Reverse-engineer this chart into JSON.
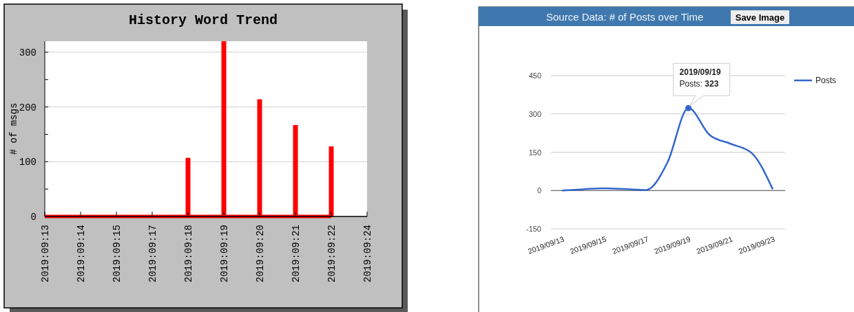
{
  "chart_data": [
    {
      "type": "bar",
      "title": "History Word Trend",
      "ylabel": "# of msgs",
      "categories": [
        "2019:09:13",
        "2019:09:14",
        "2019:09:15",
        "2019:09:17",
        "2019:09:18",
        "2019:09:19",
        "2019:09:20",
        "2019:09:21",
        "2019:09:22",
        "2019:09:24"
      ],
      "ylim": [
        0,
        320
      ],
      "yticks": [
        0,
        {
          "value": 50,
          "label": null
        },
        100,
        {
          "value": 150,
          "label": null
        },
        200,
        {
          "value": 250,
          "label": null
        },
        300
      ],
      "grid": "y",
      "series": [
        {
          "color": "#ff0000",
          "x": [
            "2019:09:18",
            "2019:09:19",
            "2019:09:20",
            "2019:09:21",
            "2019:09:22"
          ],
          "values": [
            107,
            320,
            214,
            167,
            128
          ]
        },
        {
          "type": "line",
          "color": "#ff0000",
          "x": [
            "2019:09:13",
            "2019:09:22"
          ],
          "values": [
            0,
            0
          ]
        }
      ]
    },
    {
      "type": "line",
      "title": "Source Data: # of Posts over Time",
      "categories": [
        "2019/09/13",
        null,
        "2019/09/15",
        null,
        "2019/09/17",
        null,
        "2019/09/19",
        null,
        "2019/09/21",
        null,
        "2019/09/23"
      ],
      "ylim": [
        -150,
        450
      ],
      "yticks": [
        -150,
        0,
        150,
        300,
        450
      ],
      "grid": "y",
      "legend": "right",
      "series": [
        {
          "name": "Posts",
          "color": "#3366cc",
          "values": [
            0,
            5,
            9,
            6,
            2,
            109,
            323,
            218,
            183,
            147,
            5
          ]
        },
        {
          "type": "scatter",
          "color": "#3366cc",
          "x": [
            "2019/09/19"
          ],
          "values": [
            323
          ]
        }
      ],
      "annotations": [
        {
          "text": "2019/09/19\nPosts: 323",
          "x": "2019/09/19",
          "y": 323
        },
        "Save Image"
      ]
    }
  ]
}
